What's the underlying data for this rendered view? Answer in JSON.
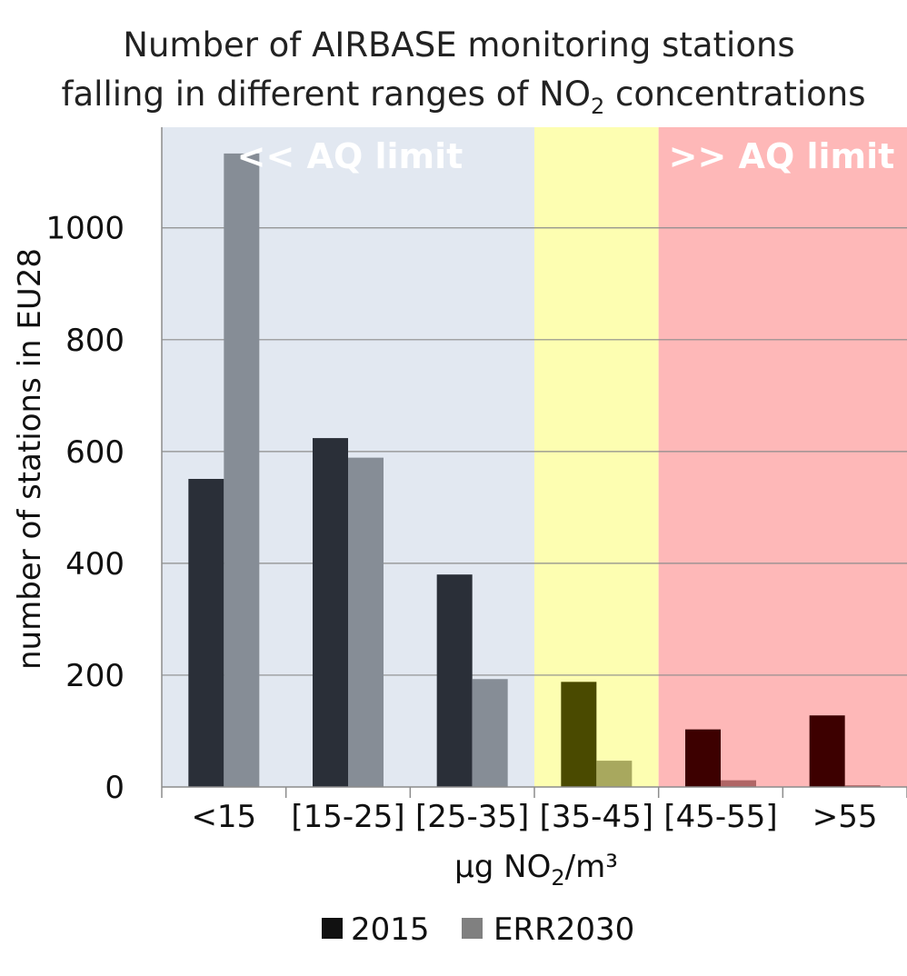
{
  "chart_data": {
    "type": "bar",
    "title_line1": "Number of AIRBASE monitoring stations",
    "title_line2_pre": "falling in different ranges of NO",
    "title_line2_sub": "2",
    "title_line2_post": " concentrations",
    "ylabel": "number of stations in EU28",
    "xlabel_pre": "µg NO",
    "xlabel_sub": "2",
    "xlabel_post": "/m³",
    "categories": [
      "<15",
      "[15-25]",
      "[25-35]",
      "[35-45]",
      "[45-55]",
      ">55"
    ],
    "series": [
      {
        "name": "2015",
        "values": [
          551,
          624,
          380,
          188,
          103,
          128
        ]
      },
      {
        "name": "ERR2030",
        "values": [
          1133,
          589,
          193,
          47,
          12,
          3
        ]
      }
    ],
    "yticks": [
      0,
      200,
      400,
      600,
      800,
      1000
    ],
    "ylim": [
      0,
      1180
    ],
    "grid": true,
    "legend_position": "bottom",
    "bands": [
      {
        "label": "<< AQ limit",
        "from_category": 0,
        "to_category": 2,
        "color": "#e2e8f1"
      },
      {
        "label": "",
        "from_category": 3,
        "to_category": 3,
        "color": "#fdfeb1"
      },
      {
        "label": ">> AQ limit",
        "from_category": 4,
        "to_category": 5,
        "color": "#feb8b8"
      }
    ],
    "bar_colors": [
      [
        "#2a2f38",
        "#868d96"
      ],
      [
        "#2a2f38",
        "#868d96"
      ],
      [
        "#2a2f38",
        "#868d96"
      ],
      [
        "#4a4a00",
        "#a8a85e"
      ],
      [
        "#3d0000",
        "#b06666"
      ],
      [
        "#3d0000",
        "#b06666"
      ]
    ],
    "legend_colors": [
      "#111111",
      "#808080"
    ]
  }
}
